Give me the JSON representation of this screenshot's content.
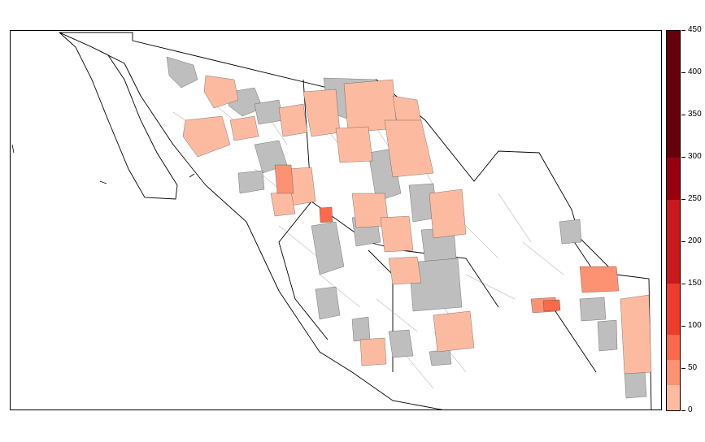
{
  "colors": {
    "missing": "#bebebe",
    "zero_or_none": "#ffffff",
    "border": "#000000",
    "internal_border": "#7f7f7f"
  },
  "legend": {
    "bins": [
      {
        "from": 0,
        "to": 10,
        "color": "#fcbba1"
      },
      {
        "from": 10,
        "to": 30,
        "color": "#fcbba1"
      },
      {
        "from": 30,
        "to": 60,
        "color": "#fc9272"
      },
      {
        "from": 60,
        "to": 90,
        "color": "#fb6a4a"
      },
      {
        "from": 90,
        "to": 100,
        "color": "#ef3b2c"
      },
      {
        "from": 100,
        "to": 150,
        "color": "#ef3b2c"
      },
      {
        "from": 150,
        "to": 200,
        "color": "#cb181d"
      },
      {
        "from": 200,
        "to": 250,
        "color": "#cb181d"
      },
      {
        "from": 250,
        "to": 300,
        "color": "#99000d"
      },
      {
        "from": 300,
        "to": 450,
        "color": "#67000d"
      }
    ],
    "max": 450,
    "ticks": [
      "0",
      "50",
      "100",
      "150",
      "200",
      "250",
      "300",
      "350",
      "400",
      "450"
    ]
  },
  "regions": [
    {
      "kind": "missing"
    },
    {
      "kind": "missing"
    },
    {
      "kind": "missing"
    },
    {
      "kind": "missing"
    },
    {
      "kind": "missing"
    },
    {
      "kind": "missing"
    },
    {
      "kind": "missing"
    },
    {
      "kind": "missing"
    },
    {
      "kind": "missing"
    },
    {
      "kind": "missing"
    },
    {
      "kind": "missing"
    },
    {
      "kind": "missing"
    },
    {
      "kind": "missing"
    },
    {
      "kind": "missing"
    },
    {
      "kind": "missing"
    },
    {
      "kind": "missing"
    },
    {
      "kind": "missing"
    },
    {
      "kind": "missing"
    },
    {
      "kind": "missing"
    },
    {
      "kind": "missing"
    },
    {
      "kind": "value",
      "value": 5
    },
    {
      "kind": "value",
      "value": 5
    },
    {
      "kind": "value",
      "value": 5
    },
    {
      "kind": "value",
      "value": 5
    },
    {
      "kind": "value",
      "value": 5
    },
    {
      "kind": "value",
      "value": 5
    },
    {
      "kind": "value",
      "value": 5
    },
    {
      "kind": "value",
      "value": 5
    },
    {
      "kind": "value",
      "value": 5
    },
    {
      "kind": "value",
      "value": 5
    },
    {
      "kind": "value",
      "value": 5
    },
    {
      "kind": "value",
      "value": 5
    },
    {
      "kind": "value",
      "value": 5
    },
    {
      "kind": "value",
      "value": 5
    },
    {
      "kind": "value",
      "value": 5
    },
    {
      "kind": "value",
      "value": 5
    },
    {
      "kind": "value",
      "value": 5
    },
    {
      "kind": "value",
      "value": 5
    },
    {
      "kind": "value",
      "value": 45
    },
    {
      "kind": "value",
      "value": 45
    },
    {
      "kind": "value",
      "value": 45
    },
    {
      "kind": "value",
      "value": 70
    },
    {
      "kind": "value",
      "value": 70
    }
  ]
}
